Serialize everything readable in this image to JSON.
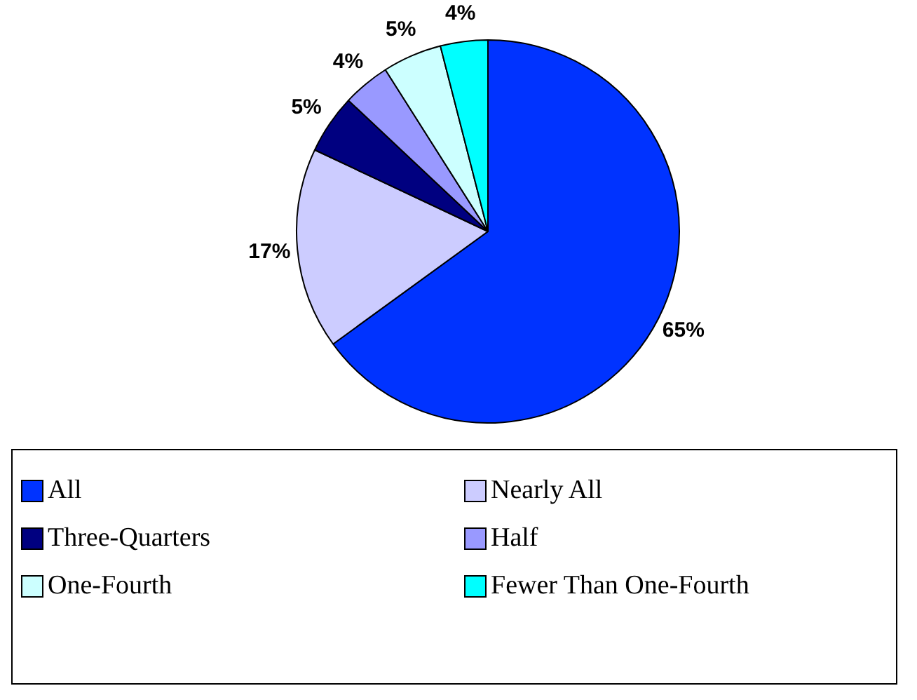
{
  "chart_data": {
    "type": "pie",
    "categories": [
      "All",
      "Nearly All",
      "Three-Quarters",
      "Half",
      "One-Fourth",
      "Fewer Than One-Fourth"
    ],
    "values": [
      65,
      17,
      5,
      4,
      5,
      4
    ],
    "value_labels": [
      "65%",
      "17%",
      "5%",
      "4%",
      "5%",
      "4%"
    ],
    "colors": [
      "#0033ff",
      "#ccccff",
      "#000080",
      "#9999ff",
      "#ccffff",
      "#00ffff"
    ],
    "legend": "bottom"
  }
}
